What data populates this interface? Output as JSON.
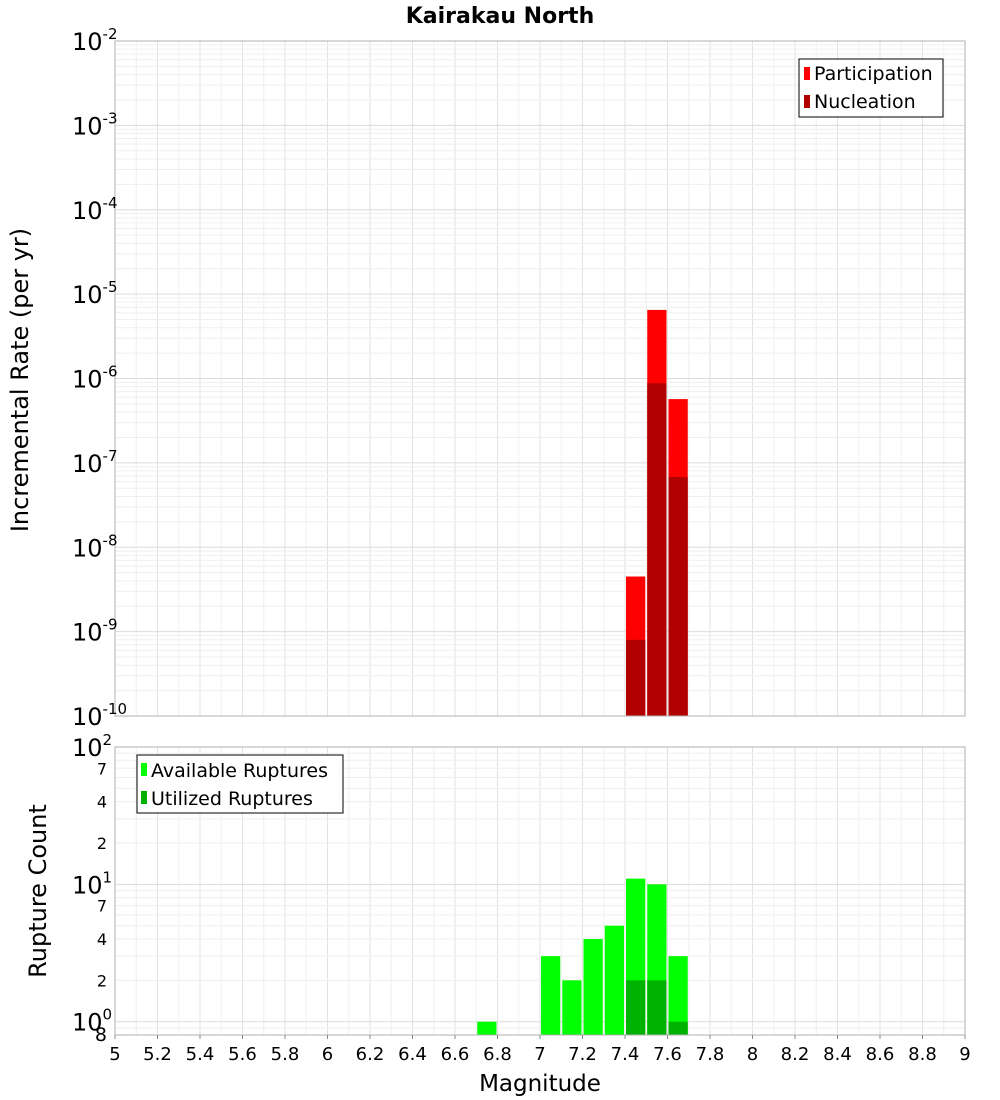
{
  "chart_data": [
    {
      "type": "bar",
      "title": "Kairakau North",
      "ylabel": "Incremental Rate (per yr)",
      "xlabel": "",
      "yscale": "log",
      "ylim": [
        1e-10,
        0.01
      ],
      "xlim": [
        5,
        9
      ],
      "y_tick_labels": [
        {
          "base": "10",
          "exp": "-2"
        },
        {
          "base": "10",
          "exp": "-3"
        },
        {
          "base": "10",
          "exp": "-4"
        },
        {
          "base": "10",
          "exp": "-5"
        },
        {
          "base": "10",
          "exp": "-6"
        },
        {
          "base": "10",
          "exp": "-7"
        },
        {
          "base": "10",
          "exp": "-8"
        },
        {
          "base": "10",
          "exp": "-9"
        },
        {
          "base": "10",
          "exp": "-10"
        }
      ],
      "bin_width": 0.1,
      "legend_position": "top-right",
      "series": [
        {
          "name": "Participation",
          "color": "#ff0000",
          "x": [
            7.45,
            7.55,
            7.65
          ],
          "values": [
            4.5e-09,
            6.5e-06,
            5.7e-07
          ]
        },
        {
          "name": "Nucleation",
          "color": "#b20000",
          "x": [
            7.45,
            7.55,
            7.65
          ],
          "values": [
            8e-10,
            8.8e-07,
            6.8e-08
          ]
        }
      ]
    },
    {
      "type": "bar",
      "title": "",
      "ylabel": "Rupture Count",
      "xlabel": "Magnitude",
      "yscale": "log",
      "ylim": [
        0.8,
        100
      ],
      "xlim": [
        5,
        9
      ],
      "x_ticks": [
        "5",
        "5.2",
        "5.4",
        "5.6",
        "5.8",
        "6",
        "6.2",
        "6.4",
        "6.6",
        "6.8",
        "7",
        "7.2",
        "7.4",
        "7.6",
        "7.8",
        "8",
        "8.2",
        "8.4",
        "8.6",
        "8.8",
        "9"
      ],
      "y_major_labels": [
        {
          "base": "10",
          "exp": "2",
          "value": 100
        },
        {
          "base": "10",
          "exp": "1",
          "value": 10
        },
        {
          "base": "10",
          "exp": "0",
          "value": 1
        }
      ],
      "y_minor_labels": [
        {
          "label": "7",
          "value": 70
        },
        {
          "label": "4",
          "value": 40
        },
        {
          "label": "2",
          "value": 20
        },
        {
          "label": "7",
          "value": 7
        },
        {
          "label": "4",
          "value": 4
        },
        {
          "label": "2",
          "value": 2
        },
        {
          "label": "8",
          "value": 0.8
        }
      ],
      "bin_width": 0.1,
      "legend_position": "top-left",
      "series": [
        {
          "name": "Available Ruptures",
          "color": "#00ff00",
          "x": [
            6.75,
            7.05,
            7.15,
            7.25,
            7.35,
            7.45,
            7.55,
            7.65
          ],
          "values": [
            1,
            3,
            2,
            4,
            5,
            11,
            10,
            3
          ]
        },
        {
          "name": "Utilized Ruptures",
          "color": "#00b200",
          "x": [
            7.45,
            7.55,
            7.65
          ],
          "values": [
            2,
            2,
            1
          ]
        }
      ]
    }
  ]
}
